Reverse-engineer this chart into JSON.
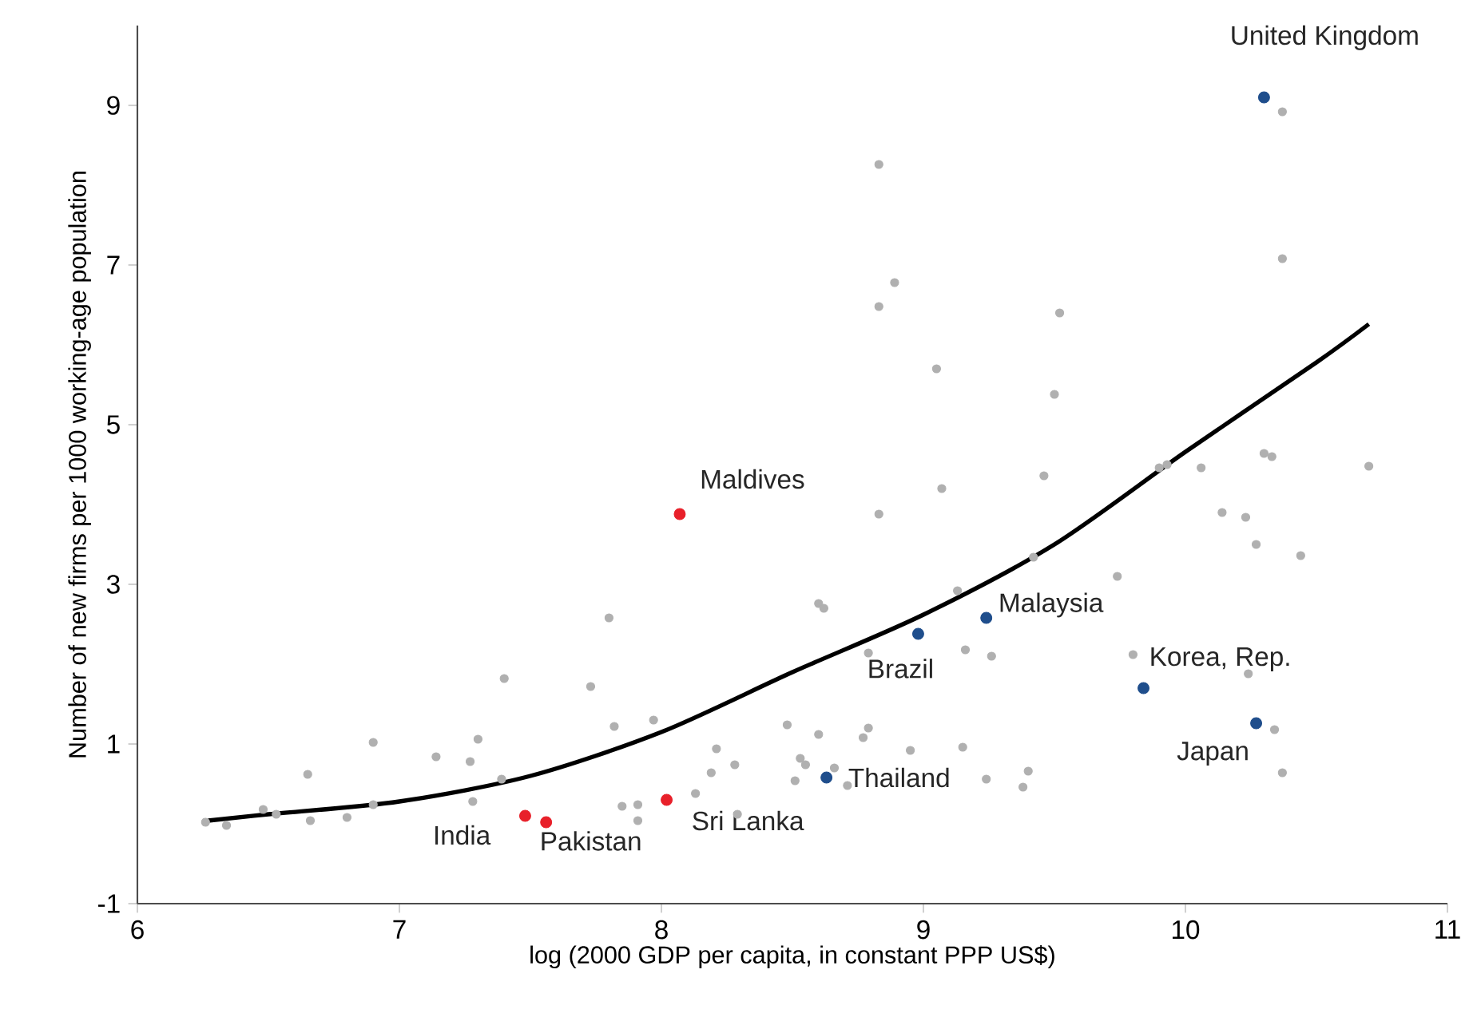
{
  "chart_data": {
    "type": "scatter",
    "xlabel": "log (2000 GDP per capita, in constant PPP US$)",
    "ylabel": "Number of new firms per 1000 working-age population",
    "xlim": [
      6,
      11
    ],
    "ylim": [
      -1,
      10
    ],
    "xticks": [
      6,
      7,
      8,
      9,
      10,
      11
    ],
    "yticks": [
      -1,
      1,
      3,
      5,
      7,
      9
    ],
    "series": [
      {
        "marker": "circle",
        "color": "#b0b0b0",
        "x": [
          6.26,
          6.34,
          6.48,
          6.53,
          6.65,
          6.66,
          6.8,
          6.9,
          6.9,
          7.14,
          7.27,
          7.3,
          7.28,
          7.39,
          7.4,
          7.73,
          7.8,
          7.82,
          7.97,
          7.85,
          7.91,
          7.91,
          8.13,
          8.21,
          8.19,
          8.28,
          8.29,
          8.48,
          8.53,
          8.55,
          8.51,
          8.83,
          8.89,
          8.83,
          9.52,
          10.37,
          9.05,
          9.5,
          9.07,
          9.46,
          9.9,
          9.93,
          10.06,
          10.3,
          10.33,
          10.7,
          10.37,
          8.83,
          10.14,
          10.23,
          10.27,
          10.44,
          9.42,
          9.74,
          9.13,
          8.6,
          8.62,
          8.79,
          9.16,
          9.26,
          9.8,
          10.24,
          10.34,
          10.37,
          8.6,
          8.79,
          8.77,
          8.95,
          9.15,
          8.66,
          8.71,
          9.24,
          9.4,
          9.38
        ],
        "values": [
          0.02,
          -0.02,
          0.18,
          0.12,
          0.62,
          0.04,
          0.08,
          1.02,
          0.24,
          0.84,
          0.78,
          1.06,
          0.28,
          0.56,
          1.82,
          1.72,
          2.58,
          1.22,
          1.3,
          0.22,
          0.24,
          0.04,
          0.38,
          0.94,
          0.64,
          0.74,
          0.12,
          1.24,
          0.82,
          0.74,
          0.54,
          8.26,
          6.78,
          6.48,
          6.4,
          7.08,
          5.7,
          5.38,
          4.2,
          4.36,
          4.46,
          4.5,
          4.46,
          4.64,
          4.6,
          4.48,
          8.92,
          3.88,
          3.9,
          3.84,
          3.5,
          3.36,
          3.34,
          3.1,
          2.92,
          2.76,
          2.7,
          2.14,
          2.18,
          2.1,
          2.12,
          1.88,
          1.18,
          0.64,
          1.12,
          1.2,
          1.08,
          0.92,
          0.96,
          0.7,
          0.48,
          0.56,
          0.66,
          0.46
        ]
      },
      {
        "marker": "circle",
        "color": "#e8202a",
        "x": [
          8.07,
          7.48,
          7.56,
          8.02
        ],
        "values": [
          3.88,
          0.1,
          0.02,
          0.3
        ]
      },
      {
        "marker": "circle",
        "color": "#1f4e8c",
        "x": [
          10.3,
          9.24,
          8.98,
          9.84,
          10.27,
          8.63
        ],
        "values": [
          9.1,
          2.58,
          2.38,
          1.7,
          1.26,
          0.58
        ]
      },
      {
        "type": "line",
        "marker": "none",
        "color": "#000000",
        "line_style": "solid",
        "x": [
          6.27,
          6.5,
          7,
          7.5,
          8,
          8.5,
          9,
          9.5,
          10,
          10.5,
          10.7
        ],
        "values": [
          0.04,
          0.12,
          0.28,
          0.6,
          1.15,
          1.9,
          2.62,
          3.5,
          4.66,
          5.78,
          6.26
        ]
      }
    ],
    "annotations": [
      {
        "text": "Maldives",
        "x": 8.07,
        "y": 3.88
      },
      {
        "text": "India",
        "x": 7.48,
        "y": 0.1
      },
      {
        "text": "Pakistan",
        "x": 7.56,
        "y": 0.02
      },
      {
        "text": "Sri Lanka",
        "x": 8.02,
        "y": 0.3
      },
      {
        "text": "United Kingdom",
        "x": 10.3,
        "y": 9.1
      },
      {
        "text": "Malaysia",
        "x": 9.24,
        "y": 2.58
      },
      {
        "text": "Brazil",
        "x": 8.98,
        "y": 2.38
      },
      {
        "text": "Korea, Rep.",
        "x": 9.84,
        "y": 1.7
      },
      {
        "text": "Japan",
        "x": 10.27,
        "y": 1.26
      },
      {
        "text": "Thailand",
        "x": 8.63,
        "y": 0.58
      }
    ]
  }
}
